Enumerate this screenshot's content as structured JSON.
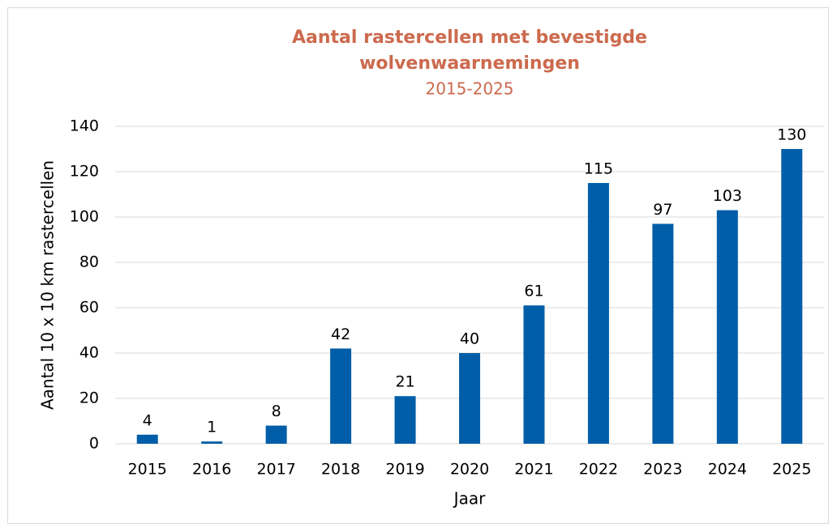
{
  "chart_data": {
    "type": "bar",
    "title": [
      "Aantal rastercellen met bevestigde",
      "wolvenwaarnemingen"
    ],
    "subtitle": "2015-2025",
    "x_label": "Jaar",
    "y_label": "Aantal 10 x 10 km rastercellen",
    "categories": [
      "2015",
      "2016",
      "2017",
      "2018",
      "2019",
      "2020",
      "2021",
      "2022",
      "2023",
      "2024",
      "2025"
    ],
    "values": [
      4,
      1,
      8,
      42,
      21,
      40,
      61,
      115,
      97,
      103,
      130
    ],
    "color": "#005ea8",
    "ylim": [
      0,
      140
    ],
    "yticks": [
      0,
      20,
      40,
      60,
      80,
      100,
      120,
      140
    ],
    "grid": true
  }
}
